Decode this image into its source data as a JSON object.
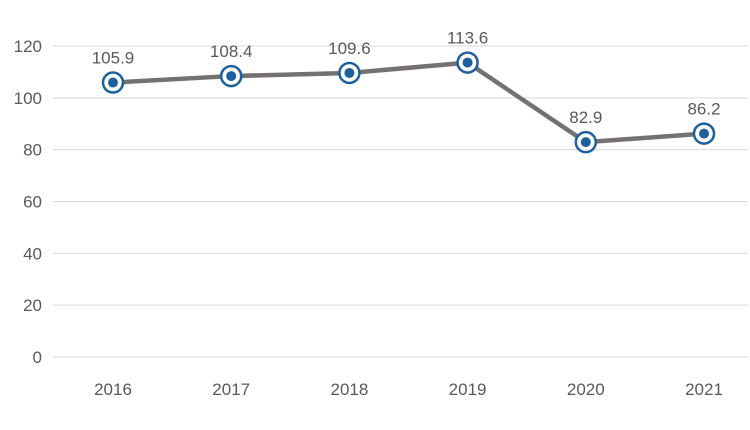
{
  "chart_data": {
    "type": "line",
    "title": "",
    "xlabel": "",
    "ylabel": "",
    "categories": [
      "2016",
      "2017",
      "2018",
      "2019",
      "2020",
      "2021"
    ],
    "series": [
      {
        "values": [
          105.9,
          108.4,
          109.6,
          113.6,
          82.9,
          86.2
        ],
        "data_labels": [
          "105.9",
          "108.4",
          "109.6",
          "113.6",
          "82.9",
          "86.2"
        ]
      }
    ],
    "ylim": [
      0,
      120
    ],
    "yticks": [
      0,
      20,
      40,
      60,
      80,
      100,
      120
    ],
    "ytick_labels": [
      "0",
      "20",
      "40",
      "60",
      "80",
      "100",
      "120"
    ],
    "grid": true,
    "legend": "none",
    "colors": {
      "line": "#767171",
      "marker_ring": "#1f5f9b",
      "marker_dot": "#1f5f9b",
      "marker_fill": "#ffffff"
    }
  }
}
